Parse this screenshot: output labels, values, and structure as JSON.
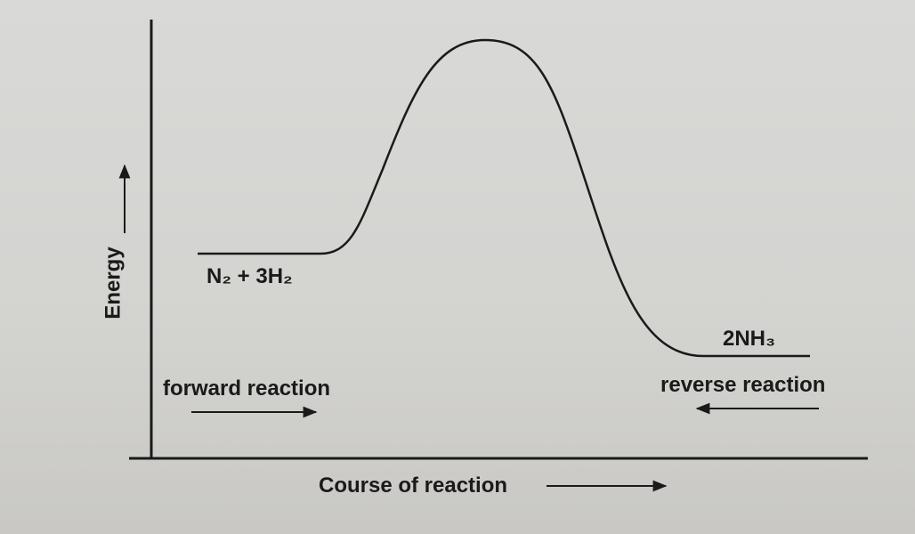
{
  "axes": {
    "y_label": "Energy",
    "x_label": "Course of reaction"
  },
  "reactants": {
    "label": "N₂ + 3H₂"
  },
  "products": {
    "label": "2NH₃"
  },
  "arrows": {
    "forward": "forward reaction",
    "reverse": "reverse reaction"
  }
}
